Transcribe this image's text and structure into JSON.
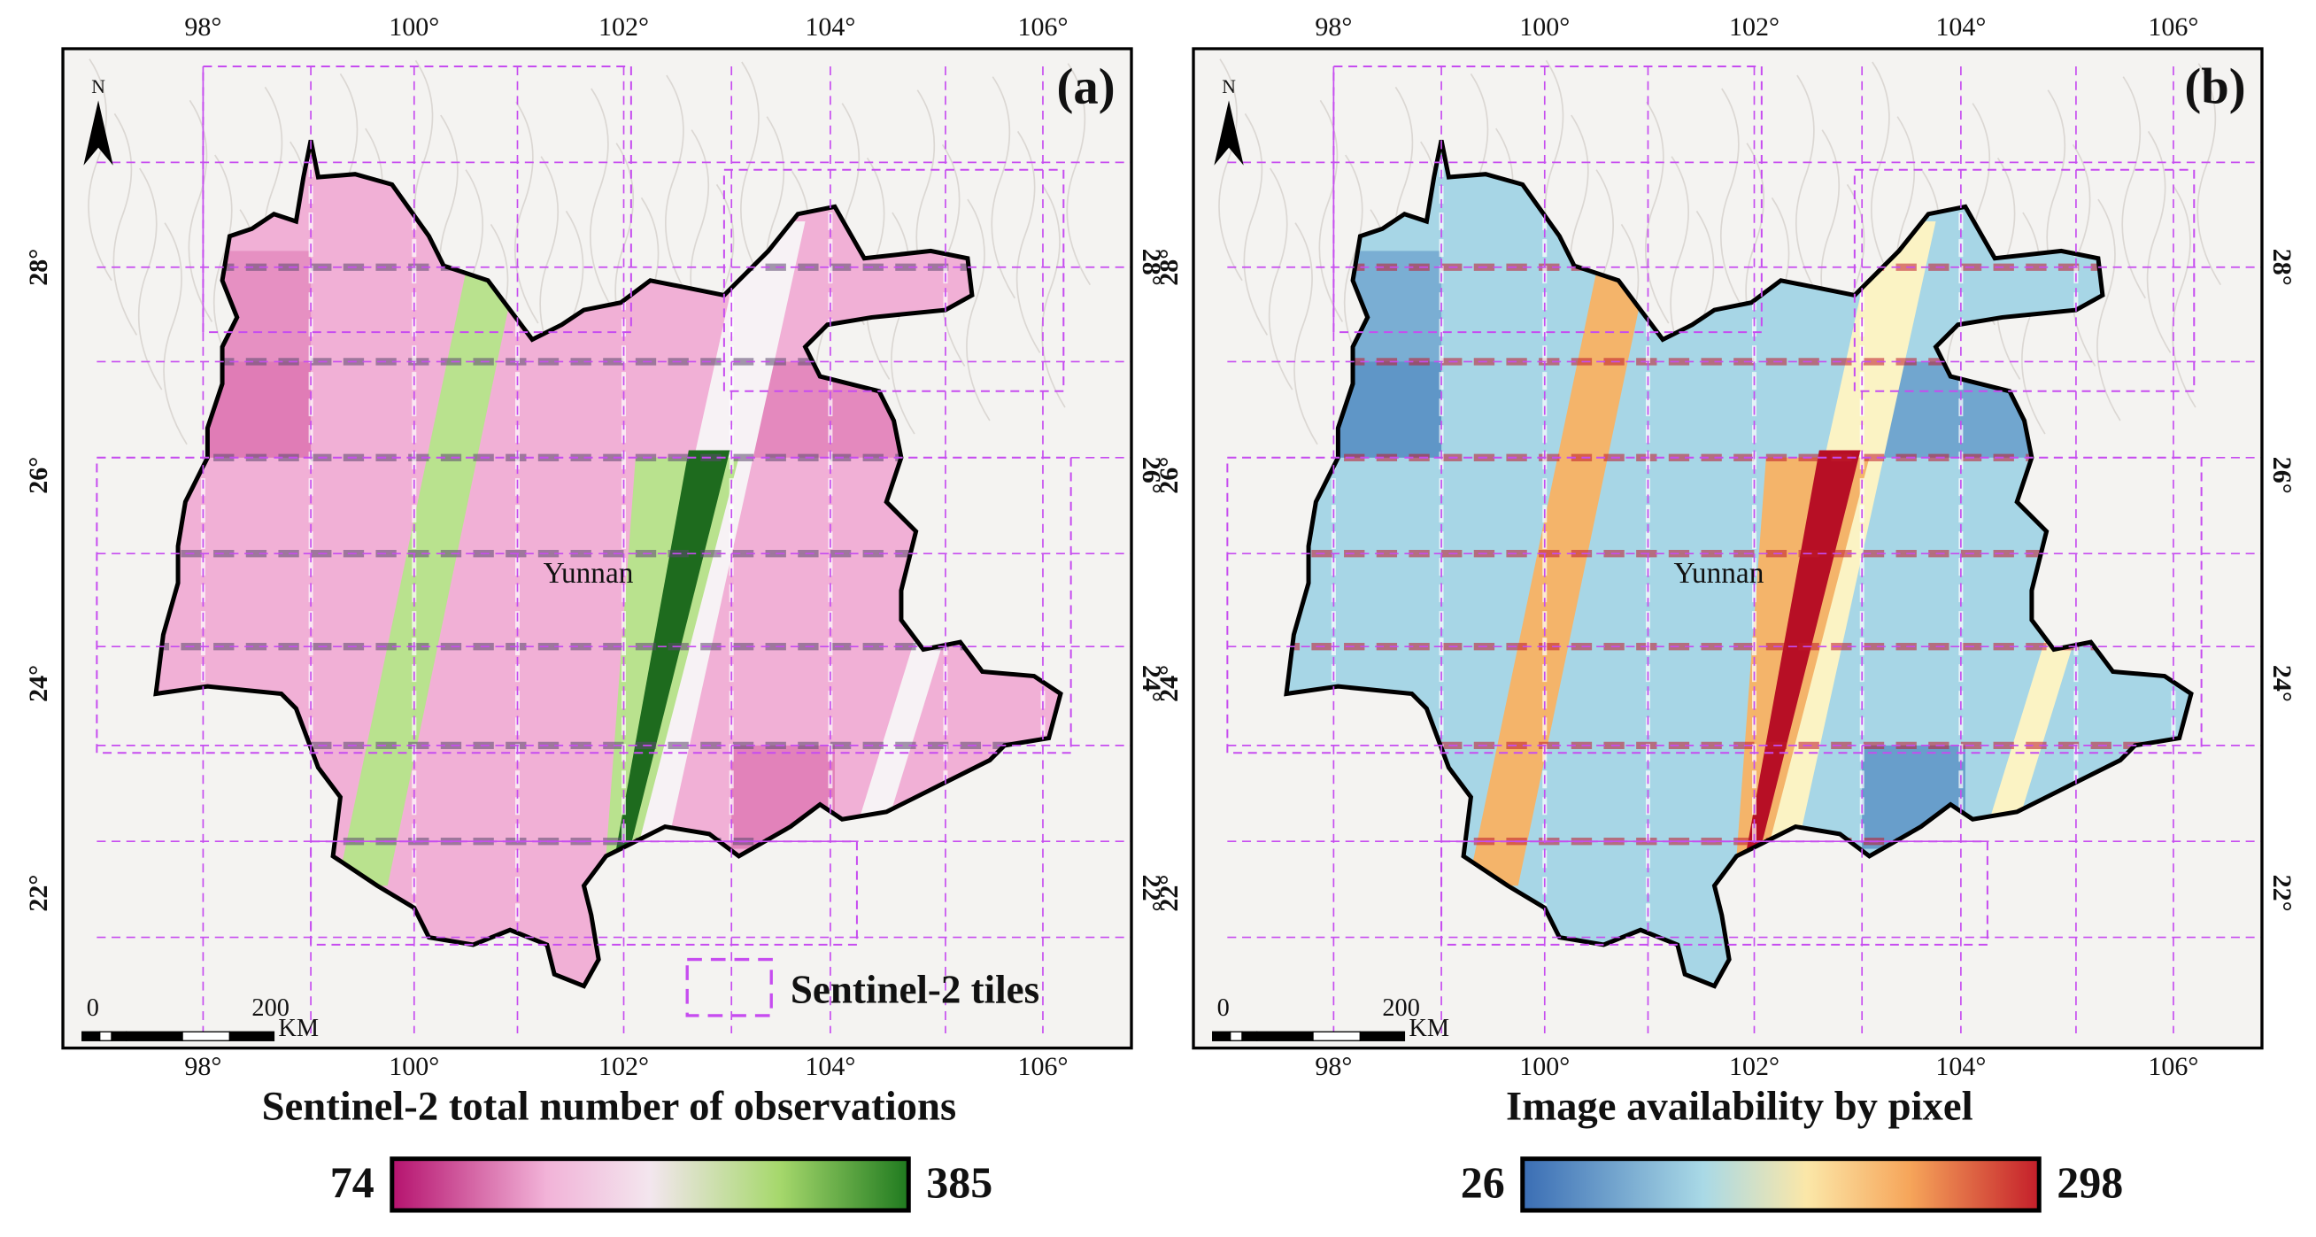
{
  "panels": [
    {
      "label": "(a)",
      "lon_ticks": [
        "98°",
        "100°",
        "102°",
        "104°",
        "106°"
      ],
      "lat_ticks": [
        "28°",
        "26°",
        "24°",
        "22°"
      ],
      "region_label": "Yunnan",
      "north": "N",
      "scale": [
        "0",
        "200",
        "KM"
      ],
      "legend": "Sentinel-2 tiles",
      "colorbar": {
        "title": "Sentinel-2 total number of observations",
        "min": 74,
        "max": 385
      }
    },
    {
      "label": "(b)",
      "lon_ticks": [
        "98°",
        "100°",
        "102°",
        "104°",
        "106°"
      ],
      "lat_ticks": [
        "28°",
        "26°",
        "24°",
        "22°"
      ],
      "region_label": "Yunnan",
      "north": "N",
      "scale": [
        "0",
        "200",
        "KM"
      ],
      "colorbar": {
        "title": "Image availability by pixel",
        "min": 26,
        "max": 298
      }
    }
  ]
}
